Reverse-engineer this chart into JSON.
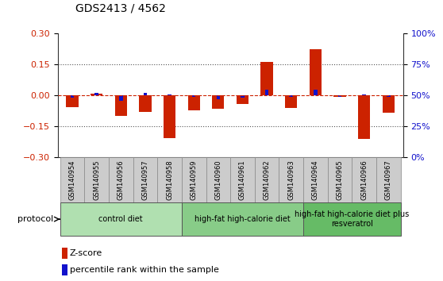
{
  "title": "GDS2413 / 4562",
  "samples": [
    "GSM140954",
    "GSM140955",
    "GSM140956",
    "GSM140957",
    "GSM140958",
    "GSM140959",
    "GSM140960",
    "GSM140961",
    "GSM140962",
    "GSM140963",
    "GSM140964",
    "GSM140965",
    "GSM140966",
    "GSM140967"
  ],
  "zscore": [
    -0.055,
    0.01,
    -0.1,
    -0.08,
    -0.205,
    -0.07,
    -0.065,
    -0.04,
    0.165,
    -0.06,
    0.225,
    -0.005,
    -0.21,
    -0.085
  ],
  "percentile_raw": [
    48,
    52,
    46,
    52,
    51,
    49,
    47,
    48,
    55,
    49,
    55,
    49,
    51,
    49
  ],
  "zscore_color": "#cc2200",
  "percentile_color": "#1111cc",
  "background_color": "#ffffff",
  "ylim": [
    -0.3,
    0.3
  ],
  "right_ylim": [
    0,
    100
  ],
  "right_yticks": [
    0,
    25,
    50,
    75,
    100
  ],
  "right_yticklabels": [
    "0%",
    "25%",
    "50%",
    "75%",
    "100%"
  ],
  "yticks": [
    -0.3,
    -0.15,
    0,
    0.15,
    0.3
  ],
  "dotted_lines": [
    -0.15,
    0.15
  ],
  "groups": [
    {
      "label": "control diet",
      "start": 0,
      "end": 4,
      "color": "#b0e0b0"
    },
    {
      "label": "high-fat high-calorie diet",
      "start": 5,
      "end": 9,
      "color": "#88cc88"
    },
    {
      "label": "high-fat high-calorie diet plus\nresveratrol",
      "start": 10,
      "end": 13,
      "color": "#66bb66"
    }
  ],
  "protocol_label": "protocol",
  "legend_zscore": "Z-score",
  "legend_percentile": "percentile rank within the sample",
  "bar_width": 0.5,
  "pct_bar_width": 0.15,
  "tick_label_fontsize": 6,
  "title_fontsize": 10,
  "group_label_fontsize": 7,
  "sample_box_color": "#cccccc",
  "sample_box_edge": "#888888"
}
